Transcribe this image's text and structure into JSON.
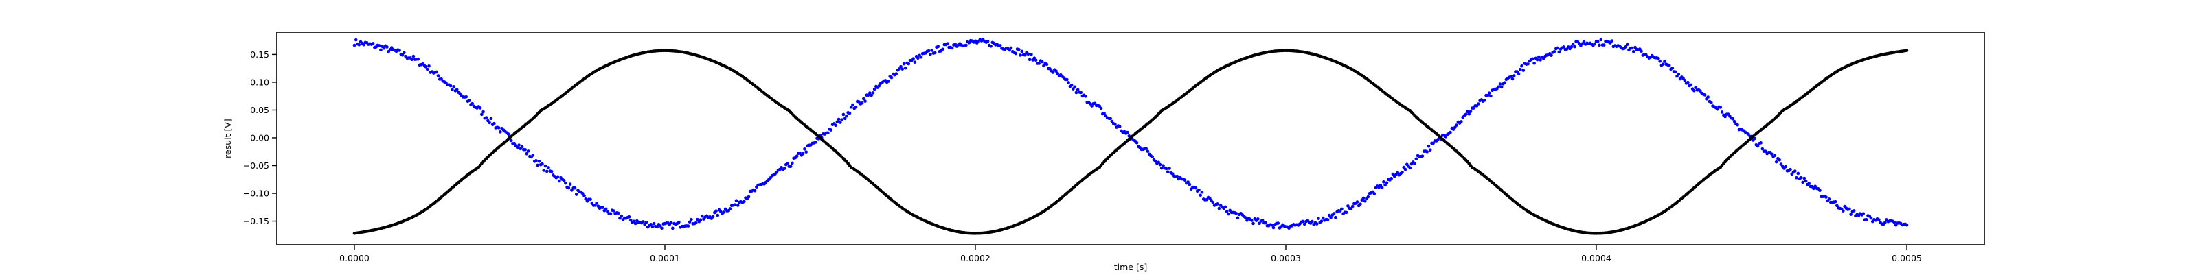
{
  "chart_data": {
    "type": "scatter",
    "title": "",
    "xlabel": "time [s]",
    "ylabel": "result [V]",
    "xlim": [
      -2.5e-05,
      0.000525
    ],
    "ylim": [
      -0.1925,
      0.19
    ],
    "grid": false,
    "legend": "none",
    "x_ticks": [
      0,
      0.0001,
      0.0002,
      0.0003,
      0.0004,
      0.0005
    ],
    "x_tick_labels": [
      "0.0000",
      "0.0001",
      "0.0002",
      "0.0003",
      "0.0004",
      "0.0005"
    ],
    "y_ticks": [
      -0.15,
      -0.1,
      -0.05,
      0,
      0.05,
      0.1,
      0.15
    ],
    "y_tick_labels": [
      "−0.15",
      "−0.10",
      "−0.05",
      "0.00",
      "0.05",
      "0.10",
      "0.15"
    ],
    "series": [
      {
        "color": "#0000ff",
        "marker": "dot",
        "noise": "visible scatter (~±0.005 V)",
        "x": [
          0,
          2e-05,
          4e-05,
          5e-05,
          6e-05,
          8e-05,
          0.0001,
          0.00012,
          0.00014,
          0.00015,
          0.00016,
          0.00018,
          0.0002,
          0.00022,
          0.00024,
          0.00025,
          0.00026,
          0.00028,
          0.0003,
          0.00032,
          0.00034,
          0.00035,
          0.00036,
          0.00038,
          0.0004,
          0.00042,
          0.00044,
          0.00045,
          0.00046,
          0.00048,
          0.0005
        ],
        "y": [
          0.172,
          0.139,
          0.053,
          0.0,
          -0.05,
          -0.128,
          -0.158,
          -0.128,
          -0.05,
          0.0,
          0.053,
          0.139,
          0.172,
          0.139,
          0.053,
          0.0,
          -0.05,
          -0.128,
          -0.158,
          -0.128,
          -0.05,
          0.0,
          0.053,
          0.139,
          0.172,
          0.139,
          0.053,
          0.0,
          -0.05,
          -0.128,
          -0.158
        ]
      },
      {
        "color": "#000000",
        "marker": "dot",
        "noise": "none",
        "x": [
          0,
          2e-05,
          4e-05,
          5e-05,
          6e-05,
          8e-05,
          0.0001,
          0.00012,
          0.00014,
          0.00015,
          0.00016,
          0.00018,
          0.0002,
          0.00022,
          0.00024,
          0.00025,
          0.00026,
          0.00028,
          0.0003,
          0.00032,
          0.00034,
          0.00035,
          0.00036,
          0.00038,
          0.0004,
          0.00042,
          0.00044,
          0.00045,
          0.00046,
          0.00048,
          0.0005
        ],
        "y": [
          -0.172,
          -0.139,
          -0.053,
          0.0,
          0.049,
          0.127,
          0.157,
          0.127,
          0.049,
          0.0,
          -0.053,
          -0.139,
          -0.172,
          -0.139,
          -0.053,
          0.0,
          0.049,
          0.127,
          0.157,
          0.127,
          0.049,
          0.0,
          -0.053,
          -0.139,
          -0.172,
          -0.139,
          -0.053,
          0.0,
          0.049,
          0.127,
          0.157
        ]
      }
    ]
  }
}
